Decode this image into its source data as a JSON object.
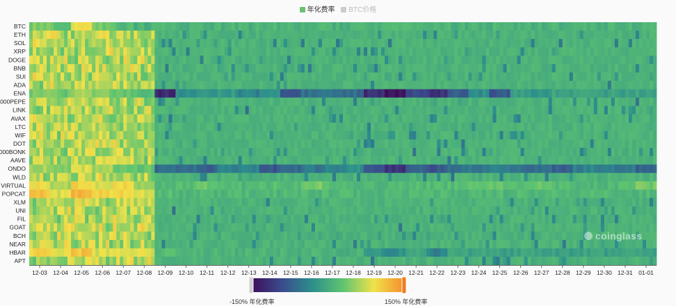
{
  "legend": {
    "items": [
      {
        "label": "年化费率",
        "color": "#6cc070",
        "active": true
      },
      {
        "label": "BTC价格",
        "color": "#cccccc",
        "active": false
      }
    ]
  },
  "visual_map": {
    "min_label": "-150% 年化费率",
    "max_label": "150% 年化费率",
    "colors": [
      "#3e0b57",
      "#3b4a8c",
      "#2c8f8c",
      "#5fc470",
      "#f0e24a",
      "#f58b2e"
    ]
  },
  "watermark": "coinglass",
  "chart_data": {
    "type": "heatmap",
    "title": "",
    "series_name": "年化费率",
    "x_labels": [
      "12-03",
      "12-04",
      "12-05",
      "12-06",
      "12-07",
      "12-08",
      "12-09",
      "12-10",
      "12-11",
      "12-12",
      "12-13",
      "12-14",
      "12-15",
      "12-16",
      "12-17",
      "12-18",
      "12-19",
      "12-20",
      "12-21",
      "12-22",
      "12-23",
      "12-24",
      "12-25",
      "12-26",
      "12-27",
      "12-28",
      "12-29",
      "12-30",
      "12-31",
      "01-01"
    ],
    "y_labels": [
      "BTC",
      "ETH",
      "SOL",
      "XRP",
      "DOGE",
      "BNB",
      "SUI",
      "ADA",
      "ENA",
      "1000PEPE",
      "LINK",
      "AVAX",
      "LTC",
      "WIF",
      "DOT",
      "1000BONK",
      "AAVE",
      "ONDO",
      "WLD",
      "VIRTUAL",
      "POPCAT",
      "XLM",
      "UNI",
      "FIL",
      "GOAT",
      "BCH",
      "NEAR",
      "HBAR",
      "APT"
    ],
    "value_unit": "% annualized funding rate",
    "value_range": [
      -150,
      150
    ],
    "base_value": 10,
    "approx_daily_values": [
      {
        "row": "BTC",
        "values": [
          45,
          30,
          90,
          40,
          20,
          10,
          10,
          10,
          10,
          10,
          10,
          10,
          10,
          10,
          10,
          10,
          10,
          10,
          10,
          10,
          10,
          10,
          10,
          10,
          10,
          10,
          10,
          10,
          10,
          10
        ]
      },
      {
        "row": "ENA",
        "values": [
          40,
          35,
          60,
          40,
          30,
          20,
          -120,
          -30,
          -20,
          -20,
          -40,
          -30,
          -90,
          -60,
          -50,
          -60,
          -120,
          -140,
          -90,
          -110,
          -70,
          -30,
          -80,
          -10,
          -20,
          -10,
          -10,
          -10,
          -10,
          -10
        ]
      },
      {
        "row": "ONDO",
        "values": [
          60,
          40,
          80,
          60,
          40,
          30,
          -60,
          -60,
          -70,
          -40,
          -40,
          -80,
          -60,
          -50,
          -40,
          -30,
          -90,
          -110,
          -70,
          -80,
          -60,
          -50,
          -40,
          -60,
          -60,
          -70,
          -40,
          -40,
          -50,
          -70
        ]
      },
      {
        "row": "VIRTUAL",
        "values": [
          90,
          60,
          100,
          80,
          100,
          60,
          20,
          20,
          30,
          20,
          15,
          20,
          20,
          40,
          20,
          15,
          15,
          15,
          20,
          20,
          20,
          35,
          30,
          25,
          30,
          20,
          15,
          15,
          20,
          40
        ]
      },
      {
        "row": "POPCAT",
        "values": [
          110,
          80,
          120,
          100,
          100,
          80,
          20,
          15,
          15,
          15,
          15,
          15,
          15,
          15,
          15,
          15,
          15,
          15,
          15,
          15,
          15,
          15,
          15,
          15,
          15,
          15,
          15,
          15,
          15,
          15
        ]
      },
      {
        "row": "HBAR",
        "values": [
          100,
          90,
          110,
          80,
          90,
          80,
          20,
          10,
          10,
          10,
          10,
          10,
          10,
          10,
          10,
          10,
          -20,
          -30,
          -10,
          -40,
          -10,
          -10,
          -10,
          -10,
          -10,
          -10,
          -10,
          -10,
          -10,
          -10
        ]
      }
    ]
  }
}
